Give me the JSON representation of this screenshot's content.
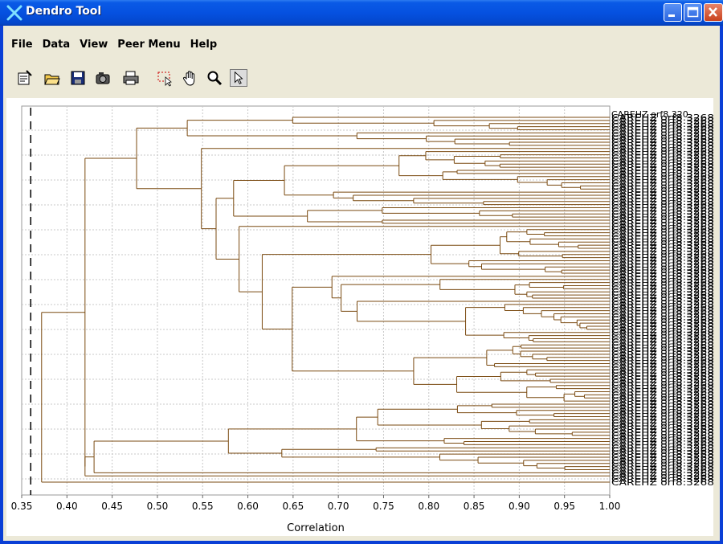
{
  "window": {
    "title": "Dendro Tool"
  },
  "menu": {
    "items": [
      "File",
      "Data",
      "View",
      "Peer Menu",
      "Help"
    ]
  },
  "toolbar": {
    "buttons": [
      {
        "name": "properties-icon"
      },
      {
        "name": "open-folder-icon"
      },
      {
        "name": "save-disk-icon"
      },
      {
        "name": "camera-icon"
      },
      {
        "name": "printer-icon"
      },
      {
        "name": "select-rectangle-icon"
      },
      {
        "name": "pan-hand-icon"
      },
      {
        "name": "zoom-magnifier-icon"
      },
      {
        "name": "pointer-arrow-icon"
      }
    ]
  },
  "chart_data": {
    "type": "dendrogram",
    "xlabel": "Correlation",
    "xlim": [
      0.35,
      1.0
    ],
    "x_ticks": [
      "0.35",
      "0.40",
      "0.45",
      "0.50",
      "0.55",
      "0.60",
      "0.65",
      "0.70",
      "0.75",
      "0.80",
      "0.85",
      "0.90",
      "0.95",
      "1.00"
    ],
    "threshold_line": 0.36,
    "grid": true,
    "leaf_label_visible": "CAREHZ orf8.3268",
    "leaf_label_top": "CAREHZ orf8.320",
    "line_color": "#7a4a10",
    "merge_heights": [
      0.37,
      0.42,
      0.48,
      0.51,
      0.52,
      0.535,
      0.545,
      0.58,
      0.62,
      0.625,
      0.63,
      0.645,
      0.66,
      0.7,
      0.71,
      0.725,
      0.75,
      0.8,
      0.87
    ]
  }
}
